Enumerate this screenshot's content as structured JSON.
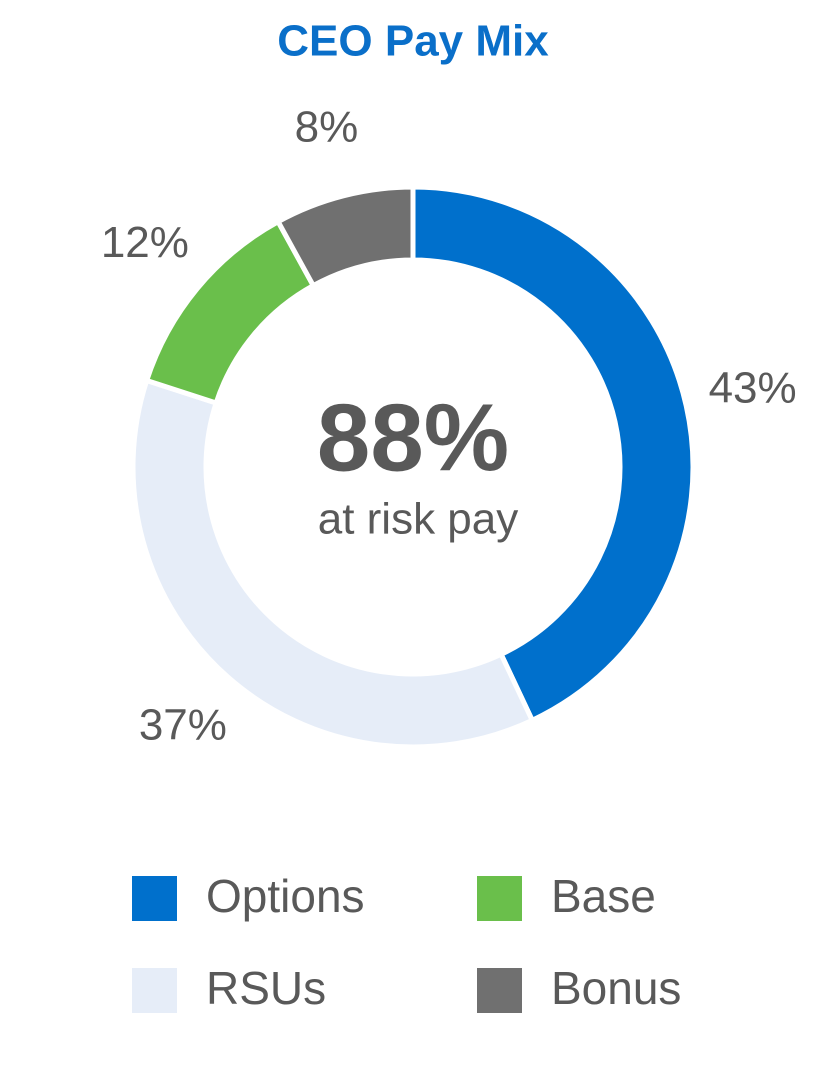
{
  "chart_data": {
    "type": "donut",
    "title": "CEO Pay Mix",
    "categories": [
      "Options",
      "RSUs",
      "Base",
      "Bonus"
    ],
    "values": [
      43,
      37,
      12,
      8
    ],
    "value_labels": [
      "43%",
      "37%",
      "12%",
      "8%"
    ],
    "colors": [
      "#0070cc",
      "#e6edf8",
      "#6abf4b",
      "#707070"
    ],
    "annotations": [
      "88%",
      "at risk pay"
    ],
    "legend": "bottom"
  }
}
